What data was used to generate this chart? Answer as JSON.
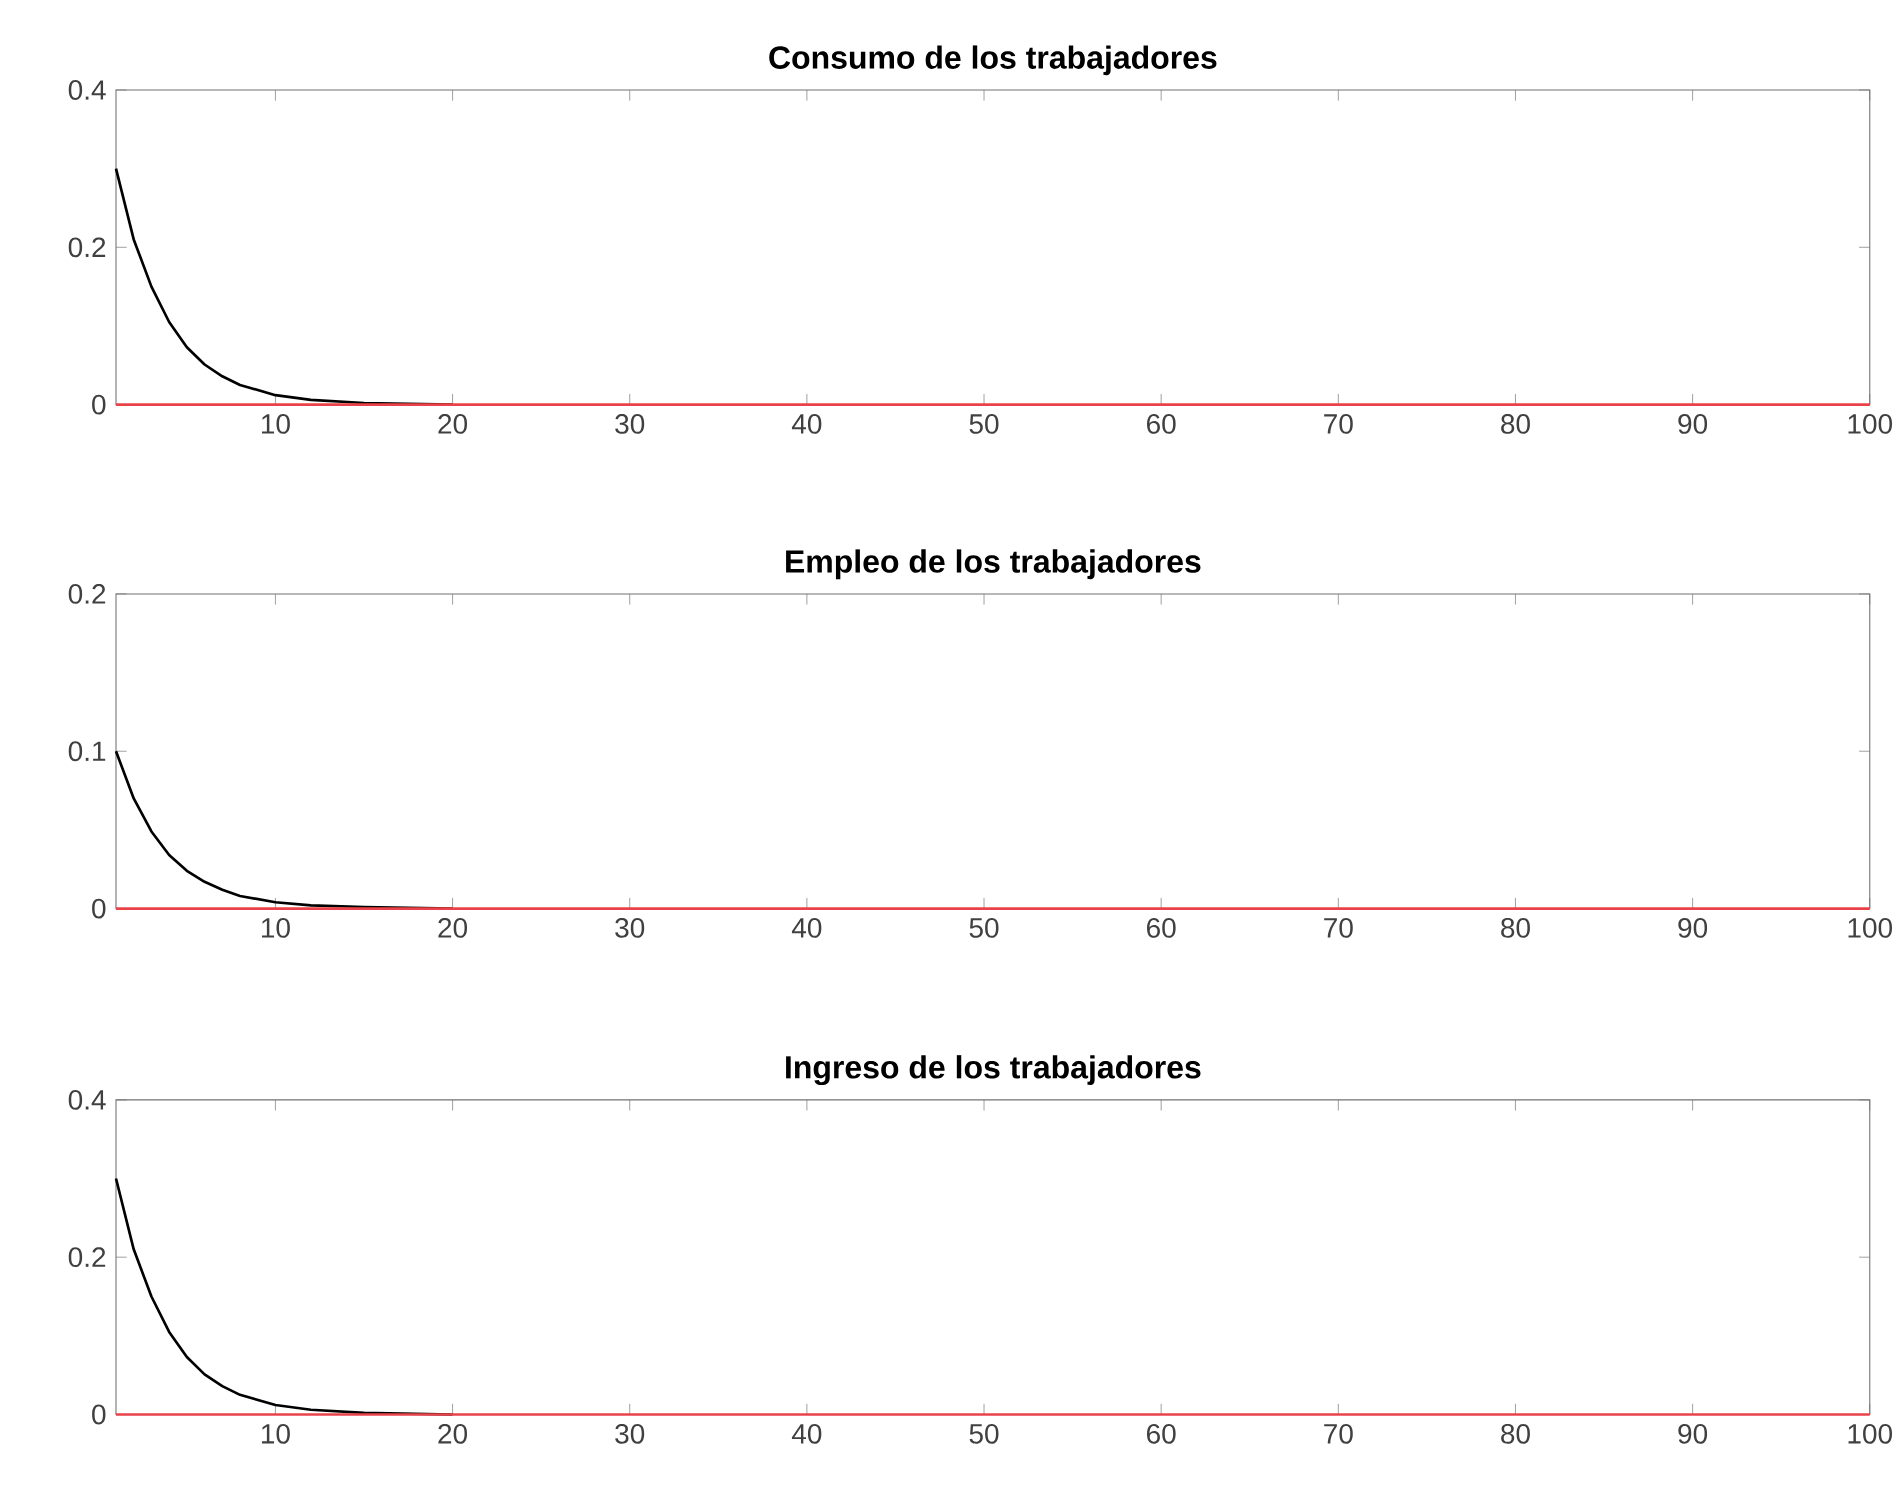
{
  "chart_data": [
    {
      "type": "line",
      "title": "Consumo de los trabajadores",
      "xlim": [
        1,
        100
      ],
      "ylim": [
        0,
        0.4
      ],
      "xticks": [
        10,
        20,
        30,
        40,
        50,
        60,
        70,
        80,
        90,
        100
      ],
      "yticks": [
        0,
        0.2,
        0.4
      ],
      "series": [
        {
          "color": "#000000",
          "x": [
            1,
            2,
            3,
            4,
            5,
            6,
            7,
            8,
            10,
            12,
            15,
            20
          ],
          "values": [
            0.3,
            0.21,
            0.15,
            0.105,
            0.073,
            0.051,
            0.036,
            0.025,
            0.012,
            0.006,
            0.002,
            0
          ]
        },
        {
          "color": "#e8434b",
          "x": [
            1,
            100
          ],
          "values": [
            0,
            0
          ]
        }
      ]
    },
    {
      "type": "line",
      "title": "Empleo de los trabajadores",
      "xlim": [
        1,
        100
      ],
      "ylim": [
        0,
        0.2
      ],
      "xticks": [
        10,
        20,
        30,
        40,
        50,
        60,
        70,
        80,
        90,
        100
      ],
      "yticks": [
        0,
        0.1,
        0.2
      ],
      "series": [
        {
          "color": "#000000",
          "x": [
            1,
            2,
            3,
            4,
            5,
            6,
            7,
            8,
            10,
            12,
            15,
            20
          ],
          "values": [
            0.1,
            0.07,
            0.049,
            0.034,
            0.024,
            0.017,
            0.012,
            0.008,
            0.004,
            0.002,
            0.001,
            0
          ]
        },
        {
          "color": "#e8434b",
          "x": [
            1,
            100
          ],
          "values": [
            0,
            0
          ]
        }
      ]
    },
    {
      "type": "line",
      "title": "Ingreso de los trabajadores",
      "xlim": [
        1,
        100
      ],
      "ylim": [
        0,
        0.4
      ],
      "xticks": [
        10,
        20,
        30,
        40,
        50,
        60,
        70,
        80,
        90,
        100
      ],
      "yticks": [
        0,
        0.2,
        0.4
      ],
      "series": [
        {
          "color": "#000000",
          "x": [
            1,
            2,
            3,
            4,
            5,
            6,
            7,
            8,
            10,
            12,
            15,
            20
          ],
          "values": [
            0.3,
            0.21,
            0.15,
            0.105,
            0.073,
            0.051,
            0.036,
            0.025,
            0.012,
            0.006,
            0.002,
            0
          ]
        },
        {
          "color": "#e8434b",
          "x": [
            1,
            100
          ],
          "values": [
            0,
            0
          ]
        }
      ]
    }
  ]
}
